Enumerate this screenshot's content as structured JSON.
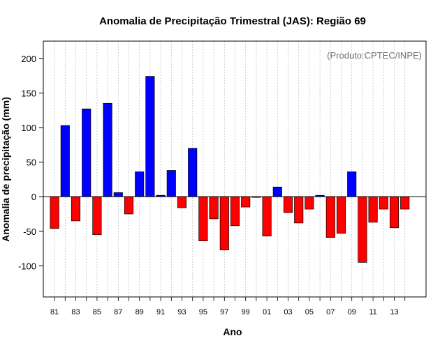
{
  "chart_data": {
    "type": "bar",
    "title": "Anomalia de Precipitação Trimestral (JAS): Região 69",
    "watermark": "(Produto:CPTEC/INPE)",
    "xlabel": "Ano",
    "ylabel": "Anomalia de precipitação (mm)",
    "ylim": [
      -145,
      225
    ],
    "yticks": [
      -100,
      -50,
      0,
      50,
      100,
      150,
      200
    ],
    "xtick_labels": [
      "81",
      "83",
      "85",
      "87",
      "89",
      "91",
      "93",
      "95",
      "97",
      "99",
      "01",
      "03",
      "05",
      "07",
      "09",
      "11",
      "13"
    ],
    "categories": [
      "1981",
      "1982",
      "1983",
      "1984",
      "1985",
      "1986",
      "1987",
      "1988",
      "1989",
      "1990",
      "1991",
      "1992",
      "1993",
      "1994",
      "1995",
      "1996",
      "1997",
      "1998",
      "1999",
      "2000",
      "2001",
      "2002",
      "2003",
      "2004",
      "2005",
      "2006",
      "2007",
      "2008",
      "2009",
      "2010",
      "2011",
      "2012",
      "2013",
      "2014"
    ],
    "values": [
      -46,
      103,
      -35,
      127,
      -55,
      135,
      6,
      -25,
      36,
      174,
      2,
      38,
      -16,
      70,
      -64,
      -32,
      -77,
      -42,
      -15,
      -1,
      -57,
      14,
      -23,
      -38,
      -18,
      2,
      -59,
      -53,
      36,
      -95,
      -37,
      -18,
      -45,
      -18
    ],
    "colors": {
      "positive": "#0000ff",
      "negative": "#ff0000",
      "grid": "#c0c0c0",
      "axis": "#000000"
    }
  }
}
